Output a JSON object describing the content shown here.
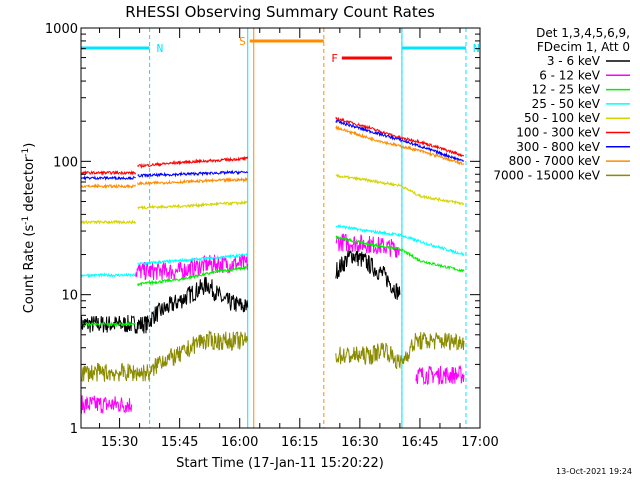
{
  "chart_data": {
    "type": "line",
    "title": "RHESSI Observing Summary Count Rates",
    "xlabel": "Start Time (17-Jan-11 15:20:22)",
    "ylabel": "Count Rate (s⁻¹ detector⁻¹)",
    "ylabel_base": "Count Rate (s",
    "ylabel_mid": " detector",
    "ylabel_end": ")",
    "ylabel_sup": "-1",
    "y_scale": "log",
    "xlim": [
      "15:20:22",
      "17:00:00"
    ],
    "ylim": [
      1,
      1000
    ],
    "x_ticks": [
      "15:30",
      "15:45",
      "16:00",
      "16:15",
      "16:30",
      "16:45",
      "17:00"
    ],
    "y_ticks": [
      "1",
      "10",
      "100",
      "1000"
    ],
    "legend": {
      "header1": "Det 1,3,4,5,6,9,",
      "header2": "FDecim 1, Att 0",
      "placement": "right-outside",
      "entries": [
        {
          "name": "3 - 6 keV",
          "color": "#000000"
        },
        {
          "name": "6 - 12 keV",
          "color": "#ff00ff"
        },
        {
          "name": "12 - 25 keV",
          "color": "#00ee00"
        },
        {
          "name": "25 - 50 keV",
          "color": "#00ffff"
        },
        {
          "name": "50 - 100 keV",
          "color": "#d4d400"
        },
        {
          "name": "100 - 300 keV",
          "color": "#ff0000"
        },
        {
          "name": "300 - 800 keV",
          "color": "#0000ff"
        },
        {
          "name": "800 - 7000 keV",
          "color": "#ff8c00"
        },
        {
          "name": "7000 - 15000 keV",
          "color": "#8b8b00"
        }
      ]
    },
    "flags": [
      {
        "label": "N",
        "color": "#00e5ff",
        "start": "15:20:22",
        "end": "15:37:30",
        "vlines": [
          "15:37:30"
        ]
      },
      {
        "label": "N",
        "color": "#00e5ff",
        "start": "16:40:30",
        "end": "16:56:30",
        "vlines": [
          "16:40:30",
          "16:56:30"
        ]
      },
      {
        "label": "S",
        "color": "#ff8c00",
        "start": "16:02:30",
        "end": "16:21:00",
        "vlines": [
          "16:21:00"
        ]
      },
      {
        "label": "F",
        "color": "#ff0000",
        "start": "16:25:30",
        "end": "16:38:00",
        "vlines": []
      }
    ],
    "saa_start": "16:02:00",
    "saa_end": "16:03:30",
    "series": [
      {
        "name": "3 - 6 keV",
        "segments": [
          [
            [
              "15:20:22",
              6
            ],
            [
              "15:37:00",
              6
            ],
            [
              "15:38:30",
              7
            ],
            [
              "15:45:00",
              9
            ],
            [
              "15:52:00",
              12
            ],
            [
              "15:56:00",
              9
            ],
            [
              "16:02:00",
              8
            ]
          ],
          [
            [
              "16:24:00",
              15
            ],
            [
              "16:28:00",
              20
            ],
            [
              "16:31:00",
              18
            ],
            [
              "16:36:00",
              14
            ],
            [
              "16:40:00",
              10
            ]
          ]
        ]
      },
      {
        "name": "6 - 12 keV",
        "segments": [
          [
            [
              "15:20:22",
              1.5
            ],
            [
              "15:33:00",
              1.5
            ]
          ],
          [
            [
              "15:34:00",
              15
            ],
            [
              "15:45:00",
              15
            ],
            [
              "15:52:00",
              17
            ],
            [
              "16:02:00",
              17
            ]
          ],
          [
            [
              "16:24:00",
              25
            ],
            [
              "16:32:00",
              24
            ],
            [
              "16:40:00",
              22
            ]
          ],
          [
            [
              "16:44:00",
              2.5
            ],
            [
              "16:56:00",
              2.5
            ]
          ]
        ]
      },
      {
        "name": "12 - 25 keV",
        "segments": [
          [
            [
              "15:20:22",
              6
            ],
            [
              "15:34:00",
              6
            ]
          ],
          [
            [
              "15:34:30",
              12
            ],
            [
              "15:45:00",
              13
            ],
            [
              "15:55:00",
              15
            ],
            [
              "16:02:00",
              16
            ]
          ],
          [
            [
              "16:24:00",
              27
            ],
            [
              "16:32:00",
              24
            ],
            [
              "16:40:00",
              22
            ],
            [
              "16:45:00",
              18
            ],
            [
              "16:56:00",
              15
            ]
          ]
        ]
      },
      {
        "name": "25 - 50 keV",
        "segments": [
          [
            [
              "15:20:22",
              14
            ],
            [
              "15:34:00",
              14
            ]
          ],
          [
            [
              "15:34:30",
              17
            ],
            [
              "15:45:00",
              18
            ],
            [
              "15:55:00",
              19
            ],
            [
              "16:02:00",
              20
            ]
          ],
          [
            [
              "16:24:00",
              33
            ],
            [
              "16:32:00",
              30
            ],
            [
              "16:40:00",
              28
            ],
            [
              "16:45:00",
              25
            ],
            [
              "16:56:00",
              20
            ]
          ]
        ]
      },
      {
        "name": "50 - 100 keV",
        "segments": [
          [
            [
              "15:20:22",
              35
            ],
            [
              "15:34:00",
              35
            ]
          ],
          [
            [
              "15:34:30",
              45
            ],
            [
              "15:45:00",
              46
            ],
            [
              "15:55:00",
              48
            ],
            [
              "16:02:00",
              49
            ]
          ],
          [
            [
              "16:24:00",
              78
            ],
            [
              "16:32:00",
              72
            ],
            [
              "16:40:00",
              66
            ],
            [
              "16:45:00",
              55
            ],
            [
              "16:56:00",
              48
            ]
          ]
        ]
      },
      {
        "name": "100 - 300 keV",
        "segments": [
          [
            [
              "15:20:22",
              82
            ],
            [
              "15:34:00",
              82
            ]
          ],
          [
            [
              "15:34:30",
              92
            ],
            [
              "15:45:00",
              98
            ],
            [
              "15:55:00",
              102
            ],
            [
              "16:02:00",
              105
            ]
          ],
          [
            [
              "16:24:00",
              210
            ],
            [
              "16:32:00",
              180
            ],
            [
              "16:40:00",
              150
            ],
            [
              "16:45:00",
              140
            ],
            [
              "16:56:00",
              110
            ]
          ]
        ]
      },
      {
        "name": "300 - 800 keV",
        "segments": [
          [
            [
              "15:20:22",
              75
            ],
            [
              "15:34:00",
              75
            ]
          ],
          [
            [
              "15:34:30",
              78
            ],
            [
              "15:45:00",
              80
            ],
            [
              "15:55:00",
              82
            ],
            [
              "16:02:00",
              83
            ]
          ],
          [
            [
              "16:24:00",
              200
            ],
            [
              "16:32:00",
              170
            ],
            [
              "16:40:00",
              145
            ],
            [
              "16:45:00",
              130
            ],
            [
              "16:56:00",
              100
            ]
          ]
        ]
      },
      {
        "name": "800 - 7000 keV",
        "segments": [
          [
            [
              "15:20:22",
              65
            ],
            [
              "15:34:00",
              65
            ]
          ],
          [
            [
              "15:34:30",
              68
            ],
            [
              "15:45:00",
              70
            ],
            [
              "15:55:00",
              72
            ],
            [
              "16:02:00",
              73
            ]
          ],
          [
            [
              "16:24:00",
              180
            ],
            [
              "16:32:00",
              150
            ],
            [
              "16:40:00",
              130
            ],
            [
              "16:45:00",
              120
            ],
            [
              "16:56:00",
              95
            ]
          ]
        ]
      },
      {
        "name": "7000 - 15000 keV",
        "segments": [
          [
            [
              "15:20:22",
              2.6
            ],
            [
              "15:38:00",
              2.6
            ],
            [
              "15:40:00",
              3.2
            ],
            [
              "15:45:00",
              3.5
            ],
            [
              "15:50:00",
              4.5
            ],
            [
              "16:02:00",
              4.5
            ]
          ],
          [
            [
              "16:24:00",
              3.5
            ],
            [
              "16:33:00",
              3.5
            ],
            [
              "16:36:00",
              4
            ],
            [
              "16:40:00",
              3
            ],
            [
              "16:44:00",
              4.5
            ],
            [
              "16:56:00",
              4.5
            ]
          ]
        ]
      }
    ]
  },
  "footer": {
    "timestamp": "13-Oct-2021 19:24"
  }
}
